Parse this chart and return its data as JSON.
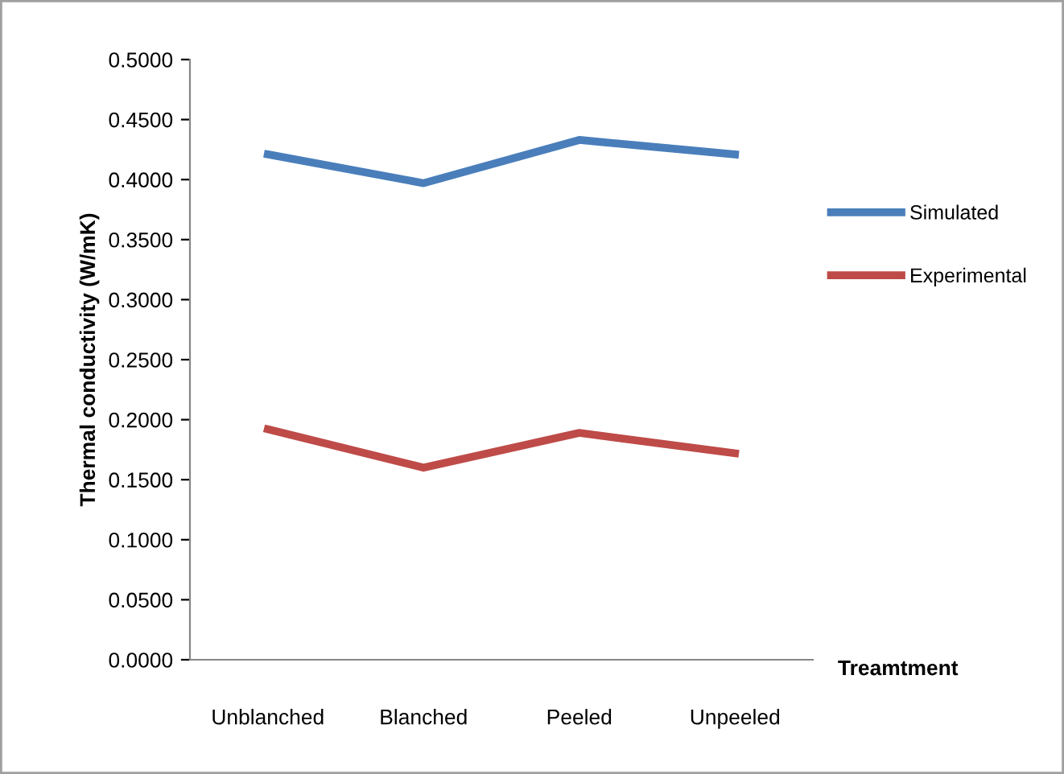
{
  "chart_data": {
    "type": "line",
    "xlabel": "Treamtment",
    "ylabel": "Thermal conductivity (W/mK)",
    "categories": [
      "Unblanched",
      "Blanched",
      "Peeled",
      "Unpeeled"
    ],
    "series": [
      {
        "name": "Simulated",
        "color": "#4a7ebb",
        "values": [
          0.421,
          0.397,
          0.433,
          0.421
        ]
      },
      {
        "name": "Experimental",
        "color": "#be4b48",
        "values": [
          0.192,
          0.16,
          0.189,
          0.172
        ]
      }
    ],
    "ylim": [
      0,
      0.5
    ],
    "yticks": [
      {
        "value": 0,
        "label": "0.0000"
      },
      {
        "value": 0.05,
        "label": "0.0500"
      },
      {
        "value": 0.1,
        "label": "0.1000"
      },
      {
        "value": 0.15,
        "label": "0.1500"
      },
      {
        "value": 0.2,
        "label": "0.2000"
      },
      {
        "value": 0.25,
        "label": "0.2500"
      },
      {
        "value": 0.3,
        "label": "0.3000"
      },
      {
        "value": 0.35,
        "label": "0.3500"
      },
      {
        "value": 0.4,
        "label": "0.4000"
      },
      {
        "value": 0.45,
        "label": "0.4500"
      },
      {
        "value": 0.5,
        "label": "0.5000"
      }
    ],
    "grid": false,
    "legend": "right",
    "marker": "none",
    "line_style": "solid"
  }
}
